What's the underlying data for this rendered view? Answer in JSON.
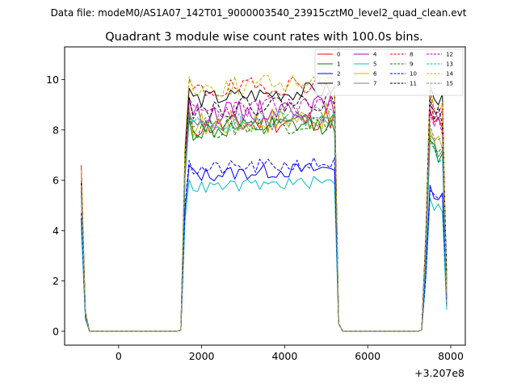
{
  "chart_data": {
    "type": "line",
    "suptitle": "Data file: modeM0/AS1A07_142T01_9000003540_23915cztM0_level2_quad_clean.evt",
    "title": "Quadrant 3 module wise count rates with 100.0s bins.",
    "xlabel": "",
    "ylabel": "",
    "x_offset_label": "+3.207e8",
    "xlim": [
      -1300,
      8350
    ],
    "ylim": [
      -0.55,
      11.3
    ],
    "x_ticks": [
      0,
      2000,
      4000,
      6000,
      8000
    ],
    "x_tick_labels": [
      "0",
      "2000",
      "4000",
      "6000",
      "8000"
    ],
    "y_ticks": [
      0,
      2,
      4,
      6,
      8,
      10
    ],
    "y_tick_labels": [
      "0",
      "2",
      "4",
      "6",
      "8",
      "10"
    ],
    "legend_position": "top-right",
    "segments": [
      {
        "x_start": -900,
        "x_end": -800,
        "phase": "start"
      },
      {
        "x_start": -700,
        "x_end": 1500,
        "phase": "zero"
      },
      {
        "x_start": 1500,
        "x_end": 1600,
        "phase": "rise"
      },
      {
        "x_start": 1700,
        "x_end": 5200,
        "phase": "plateau"
      },
      {
        "x_start": 5300,
        "x_end": 5400,
        "phase": "drop"
      },
      {
        "x_start": 5500,
        "x_end": 7300,
        "phase": "zero"
      },
      {
        "x_start": 7400,
        "x_end": 7900,
        "phase": "peak"
      }
    ],
    "series": [
      {
        "name": "0",
        "color": "#ff0000",
        "dash": "solid",
        "start": 6.6,
        "plateau": 8.1,
        "jitter": 0.45,
        "peak": 8.8
      },
      {
        "name": "1",
        "color": "#008000",
        "dash": "solid",
        "start": 5.6,
        "plateau": 7.9,
        "jitter": 0.4,
        "peak": 7.6
      },
      {
        "name": "2",
        "color": "#0000ff",
        "dash": "solid",
        "start": 4.5,
        "plateau": 6.2,
        "jitter": 0.3,
        "peak": 5.8
      },
      {
        "name": "3",
        "color": "#000000",
        "dash": "solid",
        "start": 6.0,
        "plateau": 9.2,
        "jitter": 0.35,
        "peak": 9.8
      },
      {
        "name": "4",
        "color": "#bf00bf",
        "dash": "solid",
        "start": 6.0,
        "plateau": 8.6,
        "jitter": 0.45,
        "peak": 9.0
      },
      {
        "name": "5",
        "color": "#00bfbf",
        "dash": "solid",
        "start": 4.1,
        "plateau": 5.7,
        "jitter": 0.25,
        "peak": 5.3
      },
      {
        "name": "6",
        "color": "#bfbf00",
        "dash": "solid",
        "start": 5.8,
        "plateau": 8.2,
        "jitter": 0.55,
        "peak": 8.0
      },
      {
        "name": "7",
        "color": "#808080",
        "dash": "solid",
        "start": 5.5,
        "plateau": 8.1,
        "jitter": 0.35,
        "peak": 7.8
      },
      {
        "name": "8",
        "color": "#ff0000",
        "dash": "dashed",
        "start": 6.2,
        "plateau": 9.5,
        "jitter": 0.4,
        "peak": 9.6
      },
      {
        "name": "9",
        "color": "#008000",
        "dash": "dashed",
        "start": 5.6,
        "plateau": 8.0,
        "jitter": 0.4,
        "peak": 7.7
      },
      {
        "name": "10",
        "color": "#0000ff",
        "dash": "dashed",
        "start": 4.7,
        "plateau": 6.4,
        "jitter": 0.3,
        "peak": 5.6
      },
      {
        "name": "11",
        "color": "#000000",
        "dash": "dashed",
        "start": 5.9,
        "plateau": 8.8,
        "jitter": 0.4,
        "peak": 9.3
      },
      {
        "name": "12",
        "color": "#bf00bf",
        "dash": "dashed",
        "start": 6.0,
        "plateau": 8.7,
        "jitter": 0.4,
        "peak": 8.7
      },
      {
        "name": "13",
        "color": "#00bfbf",
        "dash": "dashed",
        "start": 5.2,
        "plateau": 8.2,
        "jitter": 0.35,
        "peak": 7.5
      },
      {
        "name": "14",
        "color": "#bfbf00",
        "dash": "dashed",
        "start": 6.4,
        "plateau": 9.6,
        "jitter": 0.4,
        "peak": 9.8
      },
      {
        "name": "15",
        "color": "#808080",
        "dash": "dashed",
        "start": 5.7,
        "plateau": 8.3,
        "jitter": 0.35,
        "peak": 8.2
      }
    ]
  }
}
